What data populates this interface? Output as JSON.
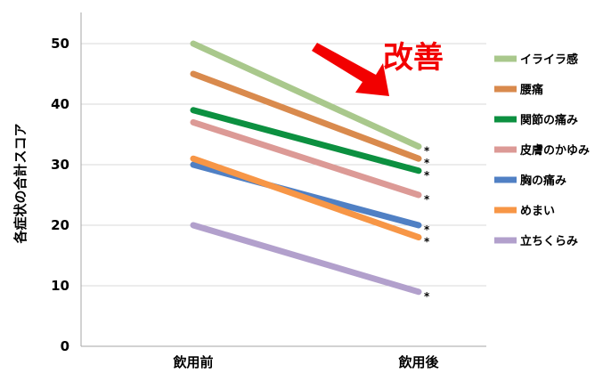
{
  "chart_data": {
    "type": "line",
    "categories": [
      "飲用前",
      "飲用後"
    ],
    "ylabel": "各症状の合計スコア",
    "xlabel": "",
    "ylim": [
      0,
      50
    ],
    "yticks": [
      0,
      10,
      20,
      30,
      40,
      50
    ],
    "grid": true,
    "legend_position": "right",
    "series": [
      {
        "name": "イライラ感",
        "values": [
          50,
          33
        ],
        "color": "#a9c88c",
        "marker": "*"
      },
      {
        "name": "腰痛",
        "values": [
          45,
          31
        ],
        "color": "#d98a4d",
        "marker": "*"
      },
      {
        "name": "関節の痛み",
        "values": [
          39,
          29
        ],
        "color": "#0c9040",
        "marker": "*"
      },
      {
        "name": "皮膚のかゆみ",
        "values": [
          37,
          25
        ],
        "color": "#dc9a96",
        "marker": "*"
      },
      {
        "name": "胸の痛み",
        "values": [
          30,
          20
        ],
        "color": "#5080c4",
        "marker": "*"
      },
      {
        "name": "めまい",
        "values": [
          31,
          18
        ],
        "color": "#f79646",
        "marker": "*"
      },
      {
        "name": "立ちくらみ",
        "values": [
          20,
          9
        ],
        "color": "#b2a0cc",
        "marker": "*"
      }
    ],
    "annotation": {
      "text": "改善",
      "arrow_color": "#f20000"
    }
  }
}
